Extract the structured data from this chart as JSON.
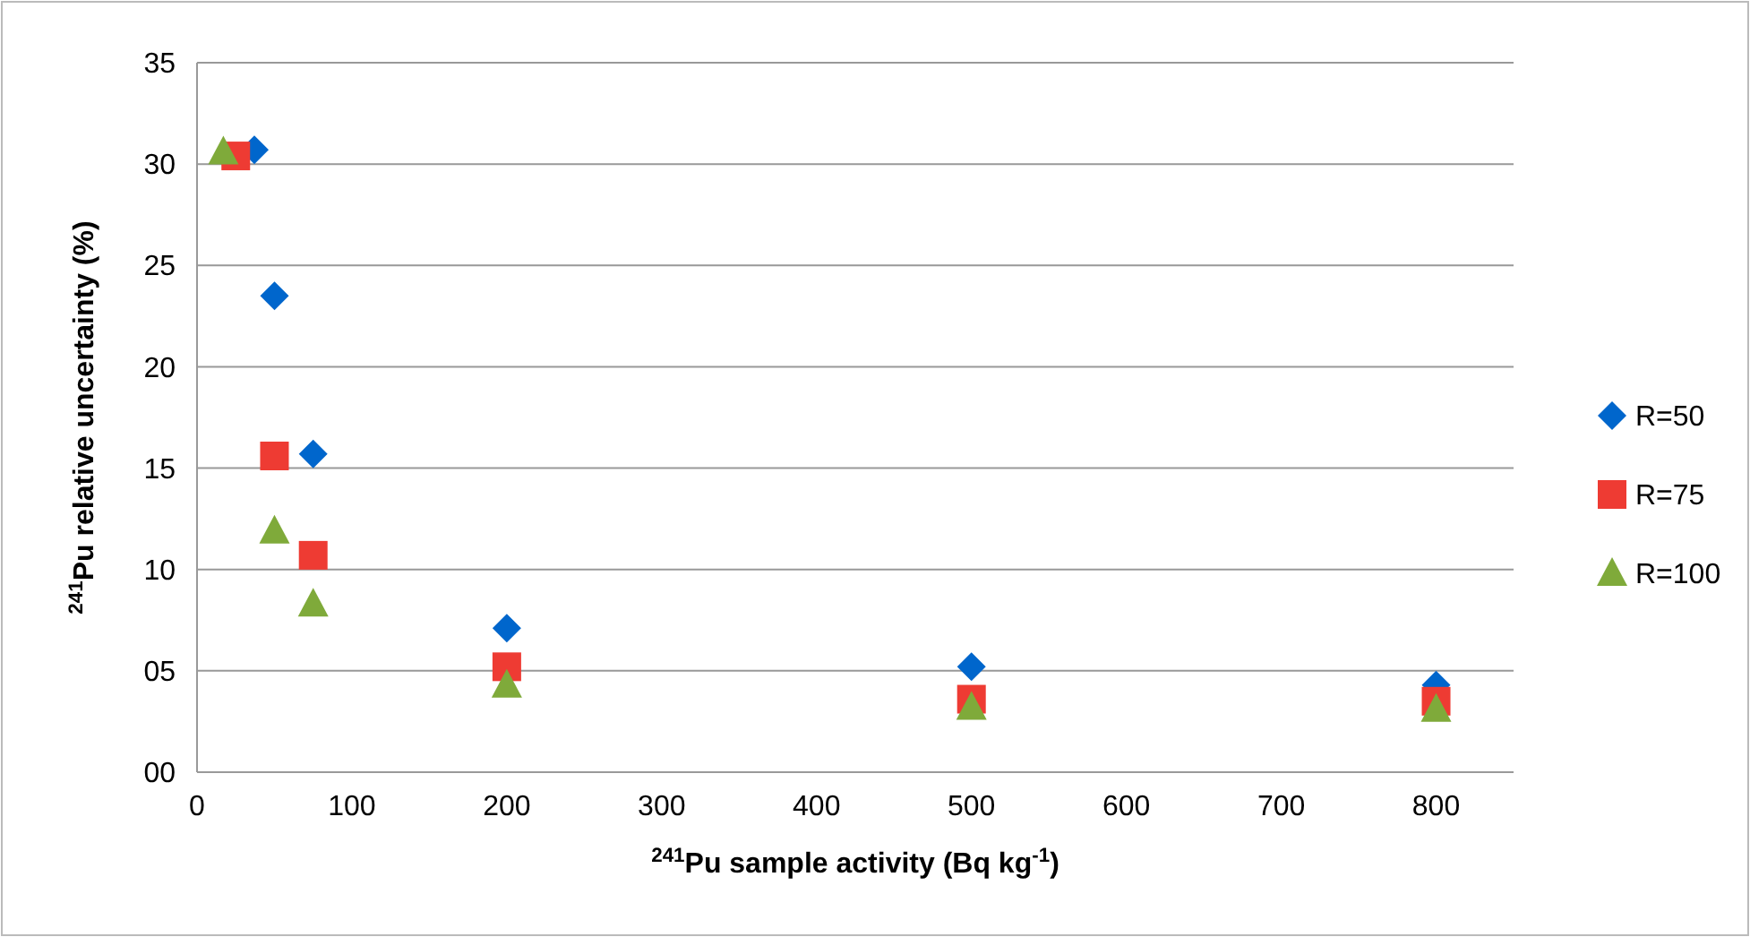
{
  "chart_data": {
    "type": "scatter",
    "xlabel": "$^{241}$Pu sample activity (Bq kg$^{-1}$)",
    "ylabel": "$^{241}$Pu relative uncertainty (%)",
    "xlim": [
      0,
      850
    ],
    "xticks": [
      0,
      100,
      200,
      300,
      400,
      500,
      600,
      700,
      800
    ],
    "ylim": [
      0,
      35
    ],
    "yticks": [
      {
        "value": 0,
        "label": "00"
      },
      {
        "value": 5,
        "label": "05"
      },
      10,
      15,
      20,
      25,
      30,
      35
    ],
    "grid": "y",
    "legend": "right",
    "series": [
      {
        "name": "R=50",
        "color": "#0066cc",
        "marker": "diamond",
        "x": [
          37,
          50,
          75,
          200,
          500,
          800
        ],
        "values": [
          30.7,
          23.5,
          15.7,
          7.1,
          5.2,
          4.3
        ]
      },
      {
        "name": "R=75",
        "color": "#ee3b33",
        "marker": "square",
        "x": [
          25,
          50,
          75,
          200,
          500,
          800
        ],
        "values": [
          30.4,
          15.6,
          10.7,
          5.2,
          3.6,
          3.5
        ]
      },
      {
        "name": "R=100",
        "color": "#7faa3a",
        "marker": "triangle",
        "x": [
          17,
          50,
          75,
          200,
          500,
          800
        ],
        "values": [
          30.6,
          11.9,
          8.3,
          4.3,
          3.2,
          3.1
        ]
      }
    ]
  }
}
